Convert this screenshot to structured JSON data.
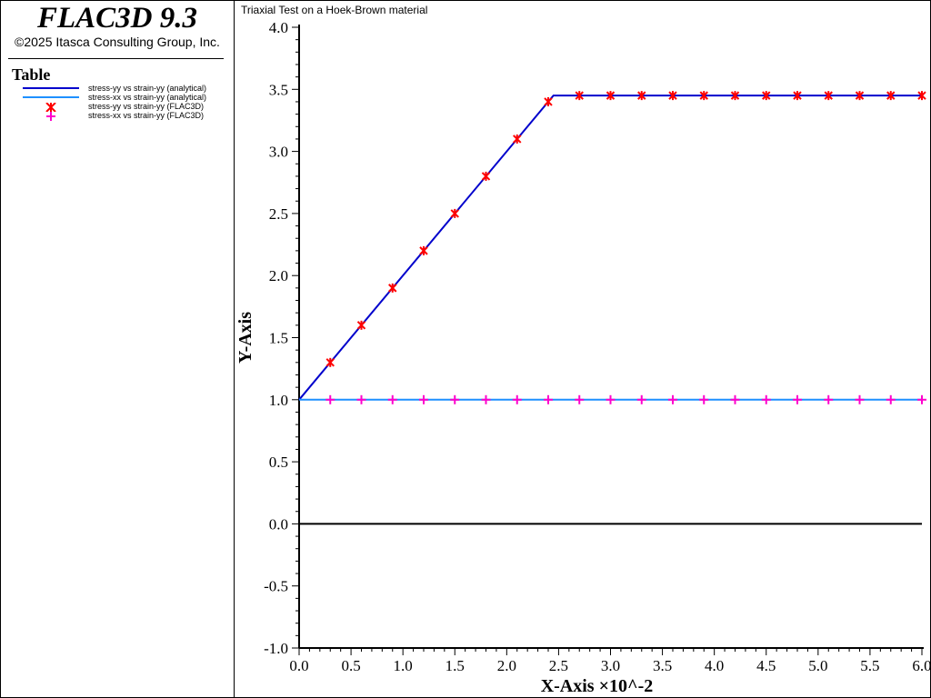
{
  "app": {
    "title": "FLAC3D 9.3",
    "copyright": "©2025 Itasca Consulting Group, Inc."
  },
  "legend": {
    "title": "Table",
    "items": [
      {
        "label": "stress-yy vs strain-yy (analytical)",
        "color": "#0000cc",
        "symbol": "line"
      },
      {
        "label": "stress-xx vs strain-yy (analytical)",
        "color": "#1e90ff",
        "symbol": "line"
      },
      {
        "label": "stress-yy vs strain-yy (FLAC3D)",
        "color": "#ff0000",
        "symbol": "asterisk"
      },
      {
        "label": "stress-xx vs strain-yy (FLAC3D)",
        "color": "#ff00cc",
        "symbol": "plus"
      }
    ]
  },
  "chart_data": {
    "type": "line",
    "title": "Triaxial Test on a Hoek-Brown material",
    "xlabel": "X-Axis ×10^-2",
    "ylabel": "Y-Axis",
    "xlim": [
      0,
      6
    ],
    "ylim": [
      -1,
      4
    ],
    "x_ticks": [
      "0.0",
      "0.5",
      "1.0",
      "1.5",
      "2.0",
      "2.5",
      "3.0",
      "3.5",
      "4.0",
      "4.5",
      "5.0",
      "5.5",
      "6.0"
    ],
    "y_ticks": [
      "4.0",
      "3.5",
      "3.0",
      "2.5",
      "2.0",
      "1.5",
      "1.0",
      "0.5",
      "0.0",
      "-0.5",
      "-1.0"
    ],
    "zero_line": true,
    "series": [
      {
        "name": "stress-yy vs strain-yy (analytical)",
        "style": "line",
        "color": "#0000cc",
        "x": [
          0,
          2.45,
          6.0
        ],
        "y": [
          1.0,
          3.45,
          3.45
        ]
      },
      {
        "name": "stress-xx vs strain-yy (analytical)",
        "style": "line",
        "color": "#1e90ff",
        "x": [
          0,
          6.0
        ],
        "y": [
          1.0,
          1.0
        ]
      },
      {
        "name": "stress-yy vs strain-yy (FLAC3D)",
        "style": "asterisk",
        "color": "#ff0000",
        "x": [
          0.3,
          0.6,
          0.9,
          1.2,
          1.5,
          1.8,
          2.1,
          2.4,
          2.7,
          3.0,
          3.3,
          3.6,
          3.9,
          4.2,
          4.5,
          4.8,
          5.1,
          5.4,
          5.7,
          6.0
        ],
        "y": [
          1.3,
          1.6,
          1.9,
          2.2,
          2.5,
          2.8,
          3.1,
          3.4,
          3.45,
          3.45,
          3.45,
          3.45,
          3.45,
          3.45,
          3.45,
          3.45,
          3.45,
          3.45,
          3.45,
          3.45
        ]
      },
      {
        "name": "stress-xx vs strain-yy (FLAC3D)",
        "style": "plus",
        "color": "#ff00cc",
        "x": [
          0.3,
          0.6,
          0.9,
          1.2,
          1.5,
          1.8,
          2.1,
          2.4,
          2.7,
          3.0,
          3.3,
          3.6,
          3.9,
          4.2,
          4.5,
          4.8,
          5.1,
          5.4,
          5.7,
          6.0
        ],
        "y": [
          1.0,
          1.0,
          1.0,
          1.0,
          1.0,
          1.0,
          1.0,
          1.0,
          1.0,
          1.0,
          1.0,
          1.0,
          1.0,
          1.0,
          1.0,
          1.0,
          1.0,
          1.0,
          1.0,
          1.0
        ]
      }
    ]
  }
}
